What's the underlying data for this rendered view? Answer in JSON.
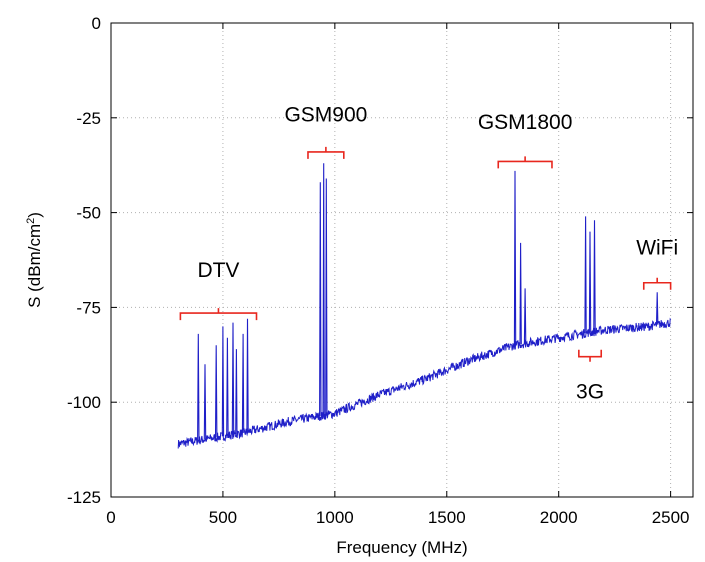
{
  "chart_data": {
    "type": "line",
    "xlabel": "Frequency (MHz)",
    "ylabel_main": "S (dBm/cm",
    "ylabel_sup": "2",
    "ylabel_close": ")",
    "xlim": [
      0,
      2600
    ],
    "ylim": [
      -125,
      0
    ],
    "xticks": [
      0,
      500,
      1000,
      1500,
      2000,
      2500
    ],
    "yticks": [
      0,
      -25,
      -50,
      -75,
      -100,
      -125
    ],
    "xtick_labels": [
      "0",
      "500",
      "1000",
      "1500",
      "2000",
      "2500"
    ],
    "ytick_labels": [
      "0",
      "-25",
      "-50",
      "-75",
      "-100",
      "-125"
    ],
    "grid": true,
    "line_color": "#1f1fc8",
    "bracket_color": "#e8271e",
    "baseline_points": [
      {
        "x": 300,
        "y": -111
      },
      {
        "x": 400,
        "y": -110
      },
      {
        "x": 600,
        "y": -108
      },
      {
        "x": 800,
        "y": -105
      },
      {
        "x": 1000,
        "y": -103
      },
      {
        "x": 1200,
        "y": -98
      },
      {
        "x": 1400,
        "y": -94
      },
      {
        "x": 1600,
        "y": -89
      },
      {
        "x": 1800,
        "y": -85
      },
      {
        "x": 2000,
        "y": -83
      },
      {
        "x": 2200,
        "y": -81
      },
      {
        "x": 2400,
        "y": -80
      },
      {
        "x": 2500,
        "y": -79
      }
    ],
    "peaks": [
      {
        "x": 390,
        "y": -82
      },
      {
        "x": 420,
        "y": -90
      },
      {
        "x": 470,
        "y": -85
      },
      {
        "x": 500,
        "y": -80
      },
      {
        "x": 520,
        "y": -83
      },
      {
        "x": 545,
        "y": -79
      },
      {
        "x": 560,
        "y": -86
      },
      {
        "x": 590,
        "y": -82
      },
      {
        "x": 610,
        "y": -78
      },
      {
        "x": 935,
        "y": -42
      },
      {
        "x": 950,
        "y": -37
      },
      {
        "x": 962,
        "y": -41
      },
      {
        "x": 1805,
        "y": -39
      },
      {
        "x": 1830,
        "y": -58
      },
      {
        "x": 1850,
        "y": -70
      },
      {
        "x": 2120,
        "y": -51
      },
      {
        "x": 2140,
        "y": -55
      },
      {
        "x": 2160,
        "y": -52
      },
      {
        "x": 2440,
        "y": -71
      }
    ],
    "annotations": [
      {
        "label": "DTV",
        "x0": 310,
        "x1": 650,
        "bracket_y": -76.5,
        "orient": "down",
        "label_y": -67
      },
      {
        "label": "GSM900",
        "x0": 880,
        "x1": 1040,
        "bracket_y": -34,
        "orient": "down",
        "label_y": -26
      },
      {
        "label": "GSM1800",
        "x0": 1730,
        "x1": 1970,
        "bracket_y": -36.5,
        "orient": "down",
        "label_y": -28
      },
      {
        "label": "3G",
        "x0": 2090,
        "x1": 2190,
        "bracket_y": -88,
        "orient": "up",
        "label_y": -99
      },
      {
        "label": "WiFi",
        "x0": 2380,
        "x1": 2500,
        "bracket_y": -68.5,
        "orient": "down",
        "label_y": -61
      }
    ]
  }
}
